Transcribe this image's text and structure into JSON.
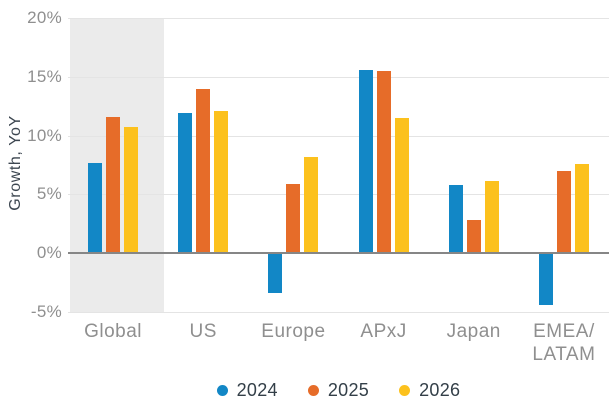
{
  "chart_data": {
    "type": "bar",
    "ylabel": "Growth, YoY",
    "categories": [
      "Global",
      "US",
      "Europe",
      "APxJ",
      "Japan",
      "EMEA/LATAM"
    ],
    "series": [
      {
        "name": "2024",
        "color": "#1287c6",
        "values": [
          7.7,
          11.9,
          -3.4,
          15.6,
          5.8,
          -4.4
        ]
      },
      {
        "name": "2025",
        "color": "#e66c29",
        "values": [
          11.6,
          14.0,
          5.9,
          15.5,
          2.8,
          7.0
        ]
      },
      {
        "name": "2026",
        "color": "#fcc11d",
        "values": [
          10.7,
          12.1,
          8.2,
          11.5,
          6.1,
          7.6
        ]
      }
    ],
    "ylim": [
      -5,
      20
    ],
    "yticks": [
      20,
      15,
      10,
      5,
      0,
      -5
    ],
    "ytick_labels": [
      "20%",
      "15%",
      "10%",
      "5%",
      "0%",
      "-5%"
    ],
    "grid": true,
    "legend_position": "bottom",
    "legend_entries": [
      "2024",
      "2025",
      "2026"
    ],
    "highlight_category": "Global",
    "highlight_color": "#ebebeb"
  },
  "style": {
    "background": "#ffffff",
    "grid_color": "#e4e4e4",
    "zero_line_color": "#868686",
    "tick_text_color": "#8f8f8f",
    "axis_title_color": "#3c4650",
    "legend_text_color": "#333f48"
  }
}
